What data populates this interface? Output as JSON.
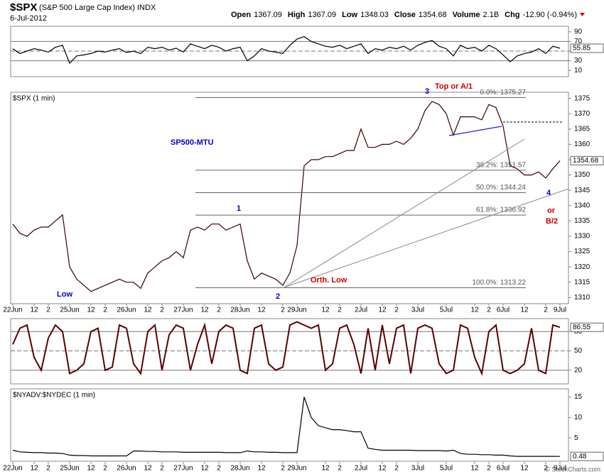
{
  "header": {
    "symbol": "$SPX",
    "name": "(S&P 500 Large Cap Index) INDX",
    "date": "6-Jul-2012",
    "quote": [
      {
        "label": "Open",
        "value": "1367.09"
      },
      {
        "label": "High",
        "value": "1367.09"
      },
      {
        "label": "Low",
        "value": "1348.03"
      },
      {
        "label": "Close",
        "value": "1354.68"
      },
      {
        "label": "Volume",
        "value": "2.1B"
      },
      {
        "label": "Chg",
        "value": "-12.90 (-0.94%)"
      }
    ],
    "watermark": "© StockCharts.com"
  },
  "chart_data": [
    {
      "type": "line",
      "color": "#000000",
      "ylim": [
        0,
        100
      ],
      "yticks": [
        10,
        30,
        50,
        70,
        90
      ],
      "levels": [
        30,
        50,
        70
      ],
      "values": [
        55,
        45,
        50,
        55,
        52,
        48,
        58,
        62,
        25,
        40,
        42,
        45,
        50,
        48,
        52,
        55,
        47,
        50,
        45,
        58,
        55,
        58,
        52,
        56,
        48,
        65,
        60,
        55,
        62,
        58,
        50,
        55,
        58,
        30,
        40,
        55,
        50,
        48,
        45,
        62,
        75,
        80,
        70,
        65,
        60,
        58,
        62,
        55,
        60,
        65,
        45,
        55,
        52,
        58,
        55,
        60,
        52,
        62,
        68,
        72,
        60,
        55,
        40,
        62,
        55,
        58,
        50,
        62,
        55,
        42,
        28,
        40,
        45,
        48,
        55,
        45,
        60,
        55.85
      ]
    },
    {
      "type": "line",
      "title": "$SPX (1 min)",
      "color": "#3a0000",
      "ylim": [
        1308,
        1377
      ],
      "yticks": [
        1310,
        1315,
        1320,
        1325,
        1330,
        1335,
        1340,
        1345,
        1350,
        1355,
        1360,
        1365,
        1370,
        1375
      ],
      "categories": [
        "22Jun",
        null,
        null,
        "12",
        null,
        "2",
        null,
        null,
        "25Jun",
        null,
        null,
        "12",
        null,
        "2",
        null,
        null,
        "26Jun",
        null,
        null,
        "12",
        null,
        "2",
        null,
        null,
        "27Jun",
        null,
        null,
        "12",
        null,
        "2",
        null,
        null,
        "28Jun",
        null,
        null,
        "12",
        null,
        null,
        "2",
        null,
        "29Jun",
        null,
        null,
        null,
        "12",
        null,
        "2",
        null,
        null,
        "2Jul",
        null,
        null,
        "12",
        null,
        "2",
        null,
        null,
        "3Jul",
        null,
        null,
        null,
        "5Jul",
        null,
        null,
        null,
        "12",
        null,
        "2",
        null,
        "6Jul",
        null,
        null,
        "12",
        null,
        null,
        "2",
        null,
        "9Jul"
      ],
      "values": [
        1334,
        1331,
        1330,
        1332,
        1333,
        1333,
        1335,
        1337,
        1320,
        1316,
        1314,
        1312,
        1313,
        1314,
        1315,
        1316,
        1315,
        1315,
        1313,
        1318,
        1320,
        1322,
        1323,
        1325,
        1323,
        1332,
        1333,
        1332,
        1334,
        1334,
        1332,
        1333,
        1334,
        1322,
        1316,
        1318,
        1317,
        1316,
        1314,
        1318,
        1327,
        1353,
        1355,
        1355,
        1356,
        1356,
        1357,
        1358,
        1358,
        1365,
        1359,
        1359,
        1360,
        1360,
        1361,
        1360,
        1362,
        1365,
        1371,
        1374,
        1373,
        1370,
        1363,
        1369,
        1369,
        1369,
        1368,
        1373,
        1372,
        1366,
        1353,
        1352,
        1350,
        1350,
        1351,
        1349,
        1352,
        1354.68
      ],
      "fib_levels": [
        {
          "value": 1375.27,
          "label": "0.0%: 1375.27"
        },
        {
          "value": 1351.57,
          "label": "38.2%: 1351.57"
        },
        {
          "value": 1344.24,
          "label": "50.0%: 1344.24"
        },
        {
          "value": 1336.92,
          "label": "61.8%: 1336.92"
        },
        {
          "value": 1313.22,
          "label": "100.0%: 1313.22"
        }
      ],
      "annotations": [
        {
          "text": "SP500-MTU",
          "color": "#0000cc"
        },
        {
          "text": "Low",
          "color": "#0000cc"
        },
        {
          "text": "1",
          "color": "#0000cc"
        },
        {
          "text": "2",
          "color": "#0000cc"
        },
        {
          "text": "3",
          "color": "#0000cc"
        },
        {
          "text": "Top or A/1",
          "color": "#cc0000"
        },
        {
          "text": "4",
          "color": "#0000cc"
        },
        {
          "text": "or",
          "color": "#cc0000"
        },
        {
          "text": "B/2",
          "color": "#cc0000"
        },
        {
          "text": "Orth. Low",
          "color": "#cc0000"
        }
      ]
    },
    {
      "type": "line",
      "color": "#5a0000",
      "ylim": [
        0,
        100
      ],
      "yticks": [
        20,
        50,
        80
      ],
      "levels": [
        20,
        50,
        80
      ],
      "values": [
        60,
        85,
        90,
        40,
        20,
        70,
        90,
        80,
        15,
        20,
        30,
        80,
        85,
        20,
        25,
        90,
        85,
        30,
        15,
        80,
        90,
        20,
        75,
        90,
        85,
        20,
        60,
        90,
        30,
        80,
        90,
        85,
        20,
        15,
        85,
        90,
        30,
        20,
        25,
        90,
        95,
        90,
        85,
        90,
        20,
        30,
        85,
        90,
        60,
        15,
        85,
        20,
        90,
        30,
        85,
        90,
        15,
        85,
        90,
        85,
        30,
        15,
        20,
        90,
        85,
        40,
        15,
        80,
        90,
        20,
        15,
        20,
        30,
        85,
        20,
        15,
        90,
        86.55
      ]
    },
    {
      "type": "line",
      "title": "$NYADV:$NYDEC (1 min)",
      "color": "#000000",
      "ylim": [
        0,
        17
      ],
      "yticks": [
        5,
        10,
        15
      ],
      "values": [
        2,
        1.6,
        1.5,
        1.4,
        1.4,
        1.3,
        1.3,
        1.2,
        0.8,
        0.7,
        0.7,
        0.6,
        0.6,
        0.6,
        0.6,
        0.6,
        0.6,
        1.8,
        1.8,
        1.7,
        1.7,
        1.6,
        1.6,
        1.6,
        1.5,
        1.5,
        1.5,
        1.5,
        1.5,
        1.5,
        1.4,
        1.4,
        1.4,
        1.8,
        1.6,
        1.6,
        1.5,
        1.5,
        1.4,
        1.4,
        1.4,
        15,
        10,
        8,
        7.5,
        7,
        7,
        6.8,
        6.5,
        6.5,
        2.5,
        2.2,
        2,
        2,
        2,
        2,
        2,
        1.9,
        1.9,
        1.9,
        1.9,
        1.8,
        2,
        1.2,
        1,
        1,
        0.9,
        0.9,
        0.8,
        0.8,
        0.6,
        0.5,
        0.5,
        0.5,
        0.5,
        0.5,
        0.5,
        0.48
      ]
    }
  ]
}
